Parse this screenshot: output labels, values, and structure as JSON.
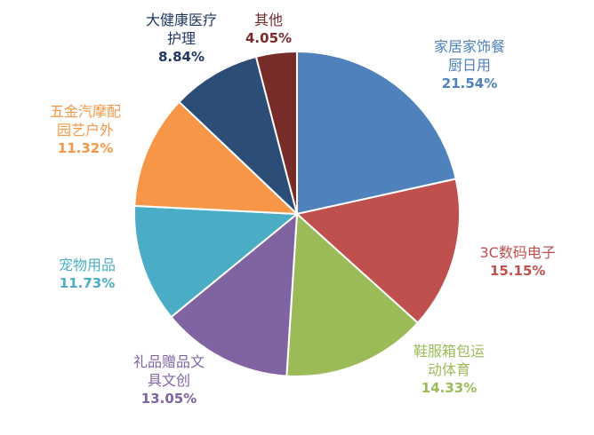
{
  "chart_data": {
    "type": "pie",
    "title": "",
    "start_angle_deg": 0,
    "direction": "clockwise",
    "slices": [
      {
        "label": "家居家饰餐厨日用",
        "label_lines": [
          "家居家饰餐",
          "厨日用"
        ],
        "value": 21.54,
        "value_label": "21.54%",
        "color": "#4F81BD",
        "label_color": "#4F81BD"
      },
      {
        "label": "3C数码电子",
        "label_lines": [
          "3C数码电子"
        ],
        "value": 15.15,
        "value_label": "15.15%",
        "color": "#C0504D",
        "label_color": "#C0504D"
      },
      {
        "label": "鞋服箱包运动体育",
        "label_lines": [
          "鞋服箱包运",
          "动体育"
        ],
        "value": 14.33,
        "value_label": "14.33%",
        "color": "#9BBB59",
        "label_color": "#9BBB59"
      },
      {
        "label": "礼品赠品文具文创",
        "label_lines": [
          "礼品赠品文",
          "具文创"
        ],
        "value": 13.05,
        "value_label": "13.05%",
        "color": "#8064A2",
        "label_color": "#8064A2"
      },
      {
        "label": "宠物用品",
        "label_lines": [
          "宠物用品"
        ],
        "value": 11.73,
        "value_label": "11.73%",
        "color": "#4BACC6",
        "label_color": "#4BACC6"
      },
      {
        "label": "五金汽摩配园艺户外",
        "label_lines": [
          "五金汽摩配",
          "园艺户外"
        ],
        "value": 11.32,
        "value_label": "11.32%",
        "color": "#F79646",
        "label_color": "#F79646"
      },
      {
        "label": "大健康医疗护理",
        "label_lines": [
          "大健康医疗",
          "护理"
        ],
        "value": 8.84,
        "value_label": "8.84%",
        "color": "#2C4D75",
        "label_color": "#1F3864"
      },
      {
        "label": "其他",
        "label_lines": [
          "其他"
        ],
        "value": 4.05,
        "value_label": "4.05%",
        "color": "#772C2A",
        "label_color": "#772C2A"
      }
    ]
  }
}
